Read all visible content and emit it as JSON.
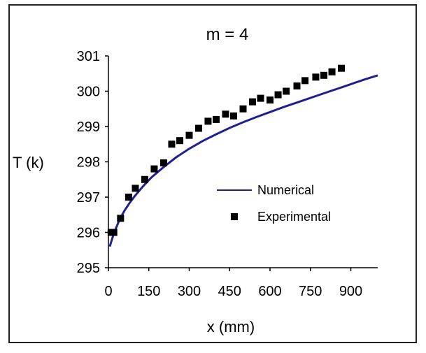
{
  "chart_data": {
    "type": "line",
    "title": "m = 4",
    "xlabel": "x (mm)",
    "ylabel": "T (k)",
    "xlim": [
      0,
      1000
    ],
    "ylim": [
      295,
      301
    ],
    "xticks": [
      0,
      150,
      300,
      450,
      600,
      750,
      900
    ],
    "yticks": [
      295,
      296,
      297,
      298,
      299,
      300,
      301
    ],
    "grid": false,
    "legend_position": "right",
    "series": [
      {
        "name": "Numerical",
        "kind": "line",
        "color": "#1f1f8f",
        "x": [
          5,
          20,
          40,
          60,
          80,
          100,
          130,
          160,
          200,
          250,
          300,
          350,
          400,
          450,
          500,
          550,
          600,
          650,
          700,
          750,
          800,
          850,
          900,
          950,
          1000
        ],
        "y": [
          295.6,
          295.97,
          296.34,
          296.62,
          296.85,
          297.05,
          297.32,
          297.56,
          297.82,
          298.12,
          298.37,
          298.59,
          298.78,
          298.96,
          299.12,
          299.27,
          299.41,
          299.55,
          299.68,
          299.81,
          299.94,
          300.07,
          300.2,
          300.33,
          300.45
        ]
      },
      {
        "name": "Experimental",
        "kind": "scatter",
        "color": "#000000",
        "x": [
          10,
          20,
          45,
          75,
          100,
          135,
          170,
          205,
          235,
          265,
          300,
          335,
          370,
          400,
          435,
          465,
          500,
          535,
          565,
          600,
          630,
          660,
          700,
          730,
          770,
          800,
          830,
          865
        ],
        "y": [
          296.0,
          296.0,
          296.4,
          297.0,
          297.25,
          297.5,
          297.8,
          297.97,
          298.5,
          298.6,
          298.75,
          298.95,
          299.15,
          299.2,
          299.35,
          299.3,
          299.5,
          299.7,
          299.8,
          299.75,
          299.9,
          300.0,
          300.15,
          300.3,
          300.4,
          300.45,
          300.55,
          300.65
        ]
      }
    ]
  }
}
